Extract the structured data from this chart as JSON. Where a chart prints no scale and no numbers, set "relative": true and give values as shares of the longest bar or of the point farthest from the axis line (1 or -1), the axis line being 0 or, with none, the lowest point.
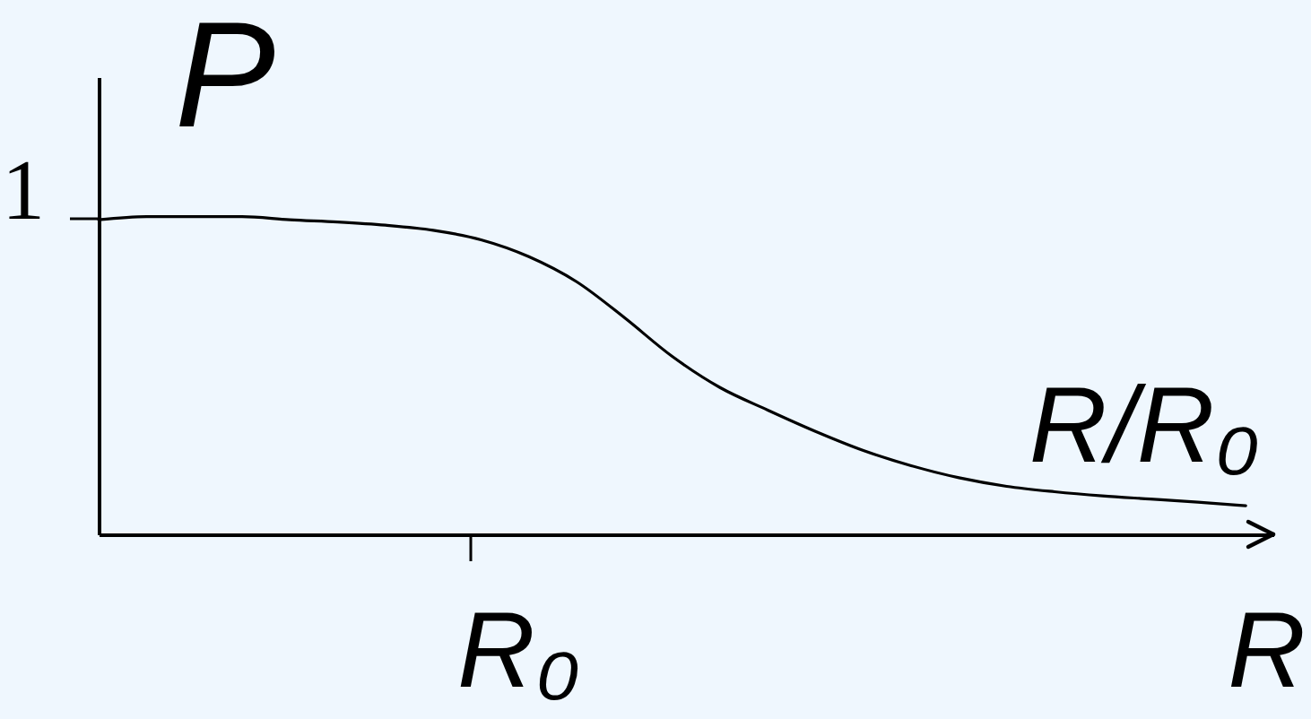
{
  "chart_data": {
    "type": "line",
    "relative": true,
    "ylabel": "P",
    "xlabel": "R/R₀",
    "categories": [
      null,
      null,
      null,
      null,
      null,
      null,
      null,
      null,
      null,
      null,
      null,
      null,
      null,
      null,
      null,
      null,
      null,
      null,
      null,
      null,
      null,
      null,
      null,
      null,
      null
    ],
    "series": [
      {
        "color": "#000000",
        "values": [
          0.99,
          1.0,
          1.0,
          1.0,
          0.99,
          0.983,
          0.973,
          0.957,
          0.927,
          0.874,
          0.795,
          0.682,
          0.56,
          0.462,
          0.391,
          0.324,
          0.264,
          0.216,
          0.178,
          0.151,
          0.134,
          0.121,
          0.111,
          0.101,
          0.09
        ]
      }
    ],
    "annotations": [
      "1",
      "R₀",
      "R"
    ]
  }
}
